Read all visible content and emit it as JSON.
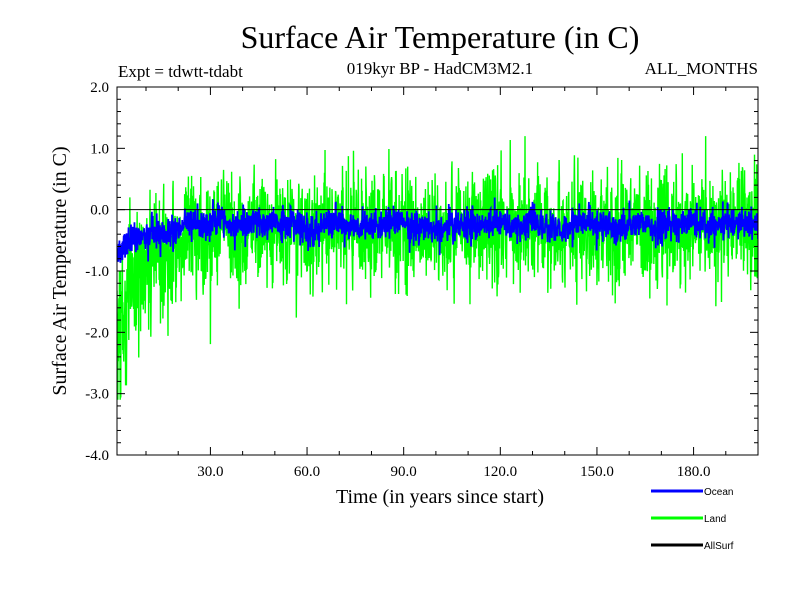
{
  "chart_data": {
    "type": "line",
    "title": "Surface Air Temperature (in C)",
    "subtitle": "019kyr BP - HadCM3M2.1",
    "experiment_label": "Expt = tdwtt-tdabt",
    "months_label": "ALL_MONTHS",
    "xlabel": "Time (in years since start)",
    "ylabel": "Surface Air Temperature (in C)",
    "xlim": [
      1,
      200
    ],
    "ylim": [
      -4.0,
      2.0
    ],
    "x_ticks": [
      30,
      60,
      90,
      120,
      150,
      180
    ],
    "x_tick_labels": [
      "30.0",
      "60.0",
      "90.0",
      "120.0",
      "150.0",
      "180.0"
    ],
    "y_ticks": [
      -4.0,
      -3.0,
      -2.0,
      -1.0,
      0.0,
      1.0,
      2.0
    ],
    "y_tick_labels": [
      "-4.0",
      "-3.0",
      "-2.0",
      "-1.0",
      "0.0",
      "1.0",
      "2.0"
    ],
    "zero_line": 0.0,
    "sampling": "monthly",
    "series": [
      {
        "name": "Ocean",
        "color": "#0000ff",
        "mean": -0.25,
        "spread": 0.45,
        "start_value": -0.7,
        "range_approx": [
          -0.9,
          0.3
        ]
      },
      {
        "name": "Land",
        "color": "#00ff00",
        "mean": -0.3,
        "spread": 1.4,
        "start_value": -2.0,
        "range_approx": [
          -3.1,
          1.2
        ]
      },
      {
        "name": "AllSurf",
        "color": "#000000",
        "mean": 0.0,
        "spread": 0.0,
        "start_value": 0.0,
        "range_approx": [
          0.0,
          0.0
        ]
      }
    ],
    "legend": [
      {
        "label": "Ocean",
        "color": "#0000ff"
      },
      {
        "label": "Land",
        "color": "#00ff00"
      },
      {
        "label": "AllSurf",
        "color": "#000000"
      }
    ]
  }
}
